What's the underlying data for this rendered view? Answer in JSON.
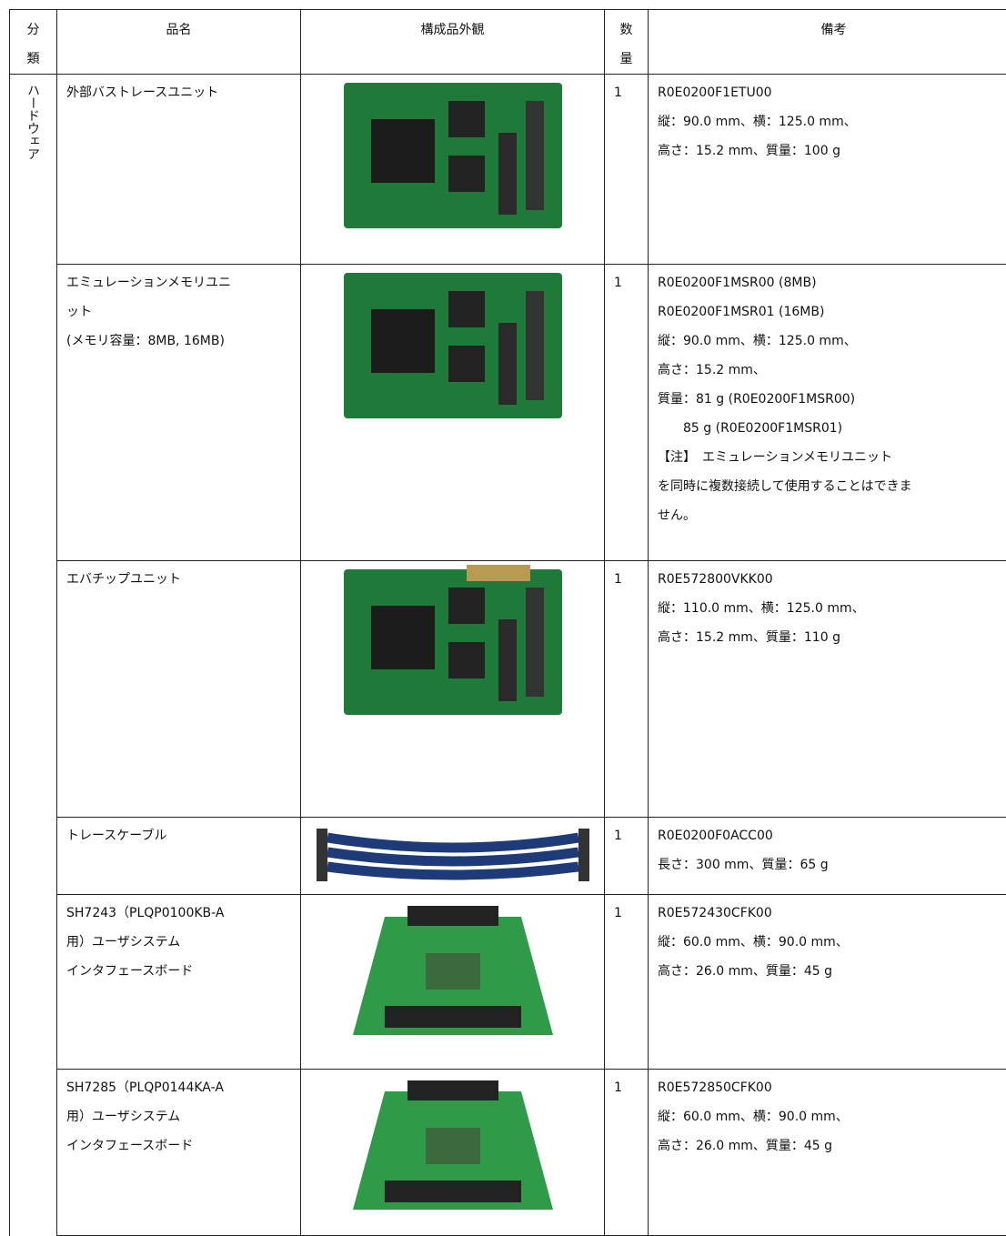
{
  "table": {
    "header": [
      "分類",
      "品名",
      "構成品外観",
      "数量",
      "備考"
    ],
    "category": "ハードウェア",
    "rows": [
      {
        "name": [
          "外部バストレースユニット"
        ],
        "qty": "1",
        "remarks": [
          "R0E0200F1ETU00",
          "縦：90.0 mm、横：125.0 mm、",
          "高さ：15.2 mm、質量：100 g"
        ]
      },
      {
        "name": [
          "エミュレーションメモリユニ",
          "ット",
          "(メモリ容量：8MB, 16MB)"
        ],
        "qty": "1",
        "remarks": [
          "R0E0200F1MSR00 (8MB)",
          "R0E0200F1MSR01 (16MB)",
          "縦：90.0 mm、横：125.0 mm、",
          "高さ：15.2 mm、",
          "質量：81 g (R0E0200F1MSR00)",
          "　　85 g (R0E0200F1MSR01)",
          "【注】　エミュレーションメモリユニット",
          "を同時に複数接続して使用することはできま",
          "せん。"
        ]
      },
      {
        "name": [
          "エバチップユニット"
        ],
        "qty": "1",
        "remarks": [
          "R0E572800VKK00",
          "縦：110.0 mm、横：125.0 mm、",
          "高さ：15.2 mm、質量：110 g"
        ]
      },
      {
        "name": [
          "トレースケーブル"
        ],
        "qty": "1",
        "remarks": [
          "R0E0200F0ACC00",
          "長さ：300 mm、質量：65 g"
        ]
      },
      {
        "name": [
          "SH7243（PLQP0100KB-A",
          "用）ユーザシステム",
          "インタフェースボード"
        ],
        "qty": "1",
        "remarks": [
          "R0E572430CFK00",
          "縦：60.0 mm、横：90.0 mm、",
          "高さ：26.0 mm、質量：45 g"
        ]
      },
      {
        "name": [
          "SH7285（PLQP0144KA-A",
          "用）ユーザシステム",
          "インタフェースボード"
        ],
        "qty": "1",
        "remarks": [
          "R0E572850CFK00",
          "縦：60.0 mm、横：90.0 mm、",
          "高さ：26.0 mm、質量：45 g"
        ]
      }
    ]
  }
}
